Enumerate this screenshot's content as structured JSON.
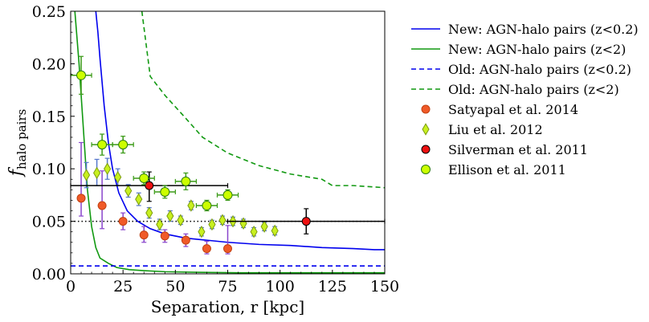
{
  "chart_data": {
    "type": "scatter",
    "xlabel": "Separation, r [kpc]",
    "ylabel_main": "f",
    "ylabel_sub": "halo pairs",
    "xlim": [
      0,
      150
    ],
    "ylim": [
      0,
      0.25
    ],
    "grid": false,
    "legend_position": "outside-right",
    "x_ticks": [
      0,
      25,
      50,
      75,
      100,
      125,
      150
    ],
    "x_tick_labels": [
      "0",
      "25",
      "50",
      "75",
      "100",
      "125",
      "150"
    ],
    "y_ticks": [
      0.0,
      0.05,
      0.1,
      0.15,
      0.2,
      0.25
    ],
    "y_tick_labels": [
      "0.00",
      "0.05",
      "0.10",
      "0.15",
      "0.20",
      "0.25"
    ],
    "reference_line": {
      "y": 0.05,
      "style": "dotted",
      "color": "#000000"
    },
    "lines": [
      {
        "name": "New: AGN-halo pairs (z<0.2)",
        "color": "#0000ee",
        "dash": "solid",
        "x": [
          12,
          13,
          14,
          16,
          18,
          20,
          23,
          27,
          32,
          38,
          45,
          55,
          65,
          75,
          90,
          105,
          120,
          135,
          145,
          150
        ],
        "y": [
          0.25,
          0.23,
          0.205,
          0.16,
          0.125,
          0.1,
          0.077,
          0.06,
          0.05,
          0.043,
          0.038,
          0.034,
          0.032,
          0.03,
          0.028,
          0.027,
          0.025,
          0.024,
          0.023,
          0.023
        ]
      },
      {
        "name": "New: AGN-halo pairs (z<2)",
        "color": "#119911",
        "dash": "solid",
        "x": [
          2,
          4,
          6,
          8,
          10,
          12,
          14,
          18,
          22,
          28,
          35,
          45,
          60,
          80,
          100,
          125,
          150
        ],
        "y": [
          0.25,
          0.2,
          0.14,
          0.08,
          0.045,
          0.025,
          0.015,
          0.01,
          0.006,
          0.004,
          0.003,
          0.002,
          0.0015,
          0.001,
          0.001,
          0.001,
          0.001
        ]
      },
      {
        "name": "Old: AGN-halo pairs (z<0.2)",
        "color": "#0000ee",
        "dash": "dashed",
        "x": [
          0,
          150
        ],
        "y": [
          0.0075,
          0.0075
        ]
      },
      {
        "name": "Old: AGN-halo pairs (z<2)",
        "color": "#119911",
        "dash": "dashed",
        "x": [
          34,
          38,
          45,
          55,
          63,
          75,
          90,
          105,
          120,
          125,
          135,
          150
        ],
        "y": [
          0.25,
          0.188,
          0.17,
          0.148,
          0.13,
          0.115,
          0.103,
          0.095,
          0.09,
          0.084,
          0.084,
          0.082
        ]
      }
    ],
    "point_series": [
      {
        "name": "Satyapal et al. 2014",
        "marker": "circle",
        "fill": "#f05a28",
        "stroke": "#c04010",
        "errcolor": "#8844cc",
        "size": 5,
        "points": [
          {
            "x": 5,
            "y": 0.072,
            "yerr_lo": 0.017,
            "yerr_hi": 0.053
          },
          {
            "x": 15,
            "y": 0.065,
            "yerr_lo": 0.022,
            "yerr_hi": 0.033
          },
          {
            "x": 25,
            "y": 0.05,
            "yerr_lo": 0.008,
            "yerr_hi": 0.008
          },
          {
            "x": 35,
            "y": 0.037,
            "yerr_lo": 0.007,
            "yerr_hi": 0.008
          },
          {
            "x": 45,
            "y": 0.036,
            "yerr_lo": 0.006,
            "yerr_hi": 0.006
          },
          {
            "x": 55,
            "y": 0.032,
            "yerr_lo": 0.006,
            "yerr_hi": 0.006
          },
          {
            "x": 65,
            "y": 0.024,
            "yerr_lo": 0.005,
            "yerr_hi": 0.007
          },
          {
            "x": 75,
            "y": 0.024,
            "yerr_lo": 0.005,
            "yerr_hi": 0.022
          }
        ]
      },
      {
        "name": "Liu et al. 2012",
        "marker": "diamond",
        "fill": "#c8f020",
        "stroke": "#7a9a10",
        "errcolor": "#5577cc",
        "size": 5,
        "points": [
          {
            "x": 7.5,
            "y": 0.094,
            "yerr_lo": 0.012,
            "yerr_hi": 0.012
          },
          {
            "x": 12.5,
            "y": 0.096,
            "yerr_lo": 0.012,
            "yerr_hi": 0.013
          },
          {
            "x": 17.5,
            "y": 0.1,
            "yerr_lo": 0.01,
            "yerr_hi": 0.01
          },
          {
            "x": 22.5,
            "y": 0.092,
            "yerr_lo": 0.008,
            "yerr_hi": 0.008
          },
          {
            "x": 27.5,
            "y": 0.079,
            "yerr_lo": 0.006,
            "yerr_hi": 0.006
          },
          {
            "x": 32.5,
            "y": 0.071,
            "yerr_lo": 0.006,
            "yerr_hi": 0.006
          },
          {
            "x": 37.5,
            "y": 0.058,
            "yerr_lo": 0.005,
            "yerr_hi": 0.005
          },
          {
            "x": 42.5,
            "y": 0.047,
            "yerr_lo": 0.005,
            "yerr_hi": 0.005
          },
          {
            "x": 47.5,
            "y": 0.055,
            "yerr_lo": 0.005,
            "yerr_hi": 0.005
          },
          {
            "x": 52.5,
            "y": 0.051,
            "yerr_lo": 0.004,
            "yerr_hi": 0.004
          },
          {
            "x": 57.5,
            "y": 0.065,
            "yerr_lo": 0.004,
            "yerr_hi": 0.004
          },
          {
            "x": 62.5,
            "y": 0.04,
            "yerr_lo": 0.004,
            "yerr_hi": 0.004
          },
          {
            "x": 67.5,
            "y": 0.047,
            "yerr_lo": 0.004,
            "yerr_hi": 0.004
          },
          {
            "x": 72.5,
            "y": 0.051,
            "yerr_lo": 0.004,
            "yerr_hi": 0.004
          },
          {
            "x": 77.5,
            "y": 0.05,
            "yerr_lo": 0.004,
            "yerr_hi": 0.004
          },
          {
            "x": 82.5,
            "y": 0.048,
            "yerr_lo": 0.004,
            "yerr_hi": 0.004
          },
          {
            "x": 87.5,
            "y": 0.04,
            "yerr_lo": 0.004,
            "yerr_hi": 0.004
          },
          {
            "x": 92.5,
            "y": 0.045,
            "yerr_lo": 0.004,
            "yerr_hi": 0.004
          },
          {
            "x": 97.5,
            "y": 0.041,
            "yerr_lo": 0.004,
            "yerr_hi": 0.004
          }
        ]
      },
      {
        "name": "Silverman et al. 2011",
        "marker": "circle",
        "fill": "#ee1111",
        "stroke": "#000000",
        "errcolor": "#000000",
        "size": 5,
        "points": [
          {
            "x": 37.5,
            "y": 0.084,
            "xerr": 37.5,
            "yerr_lo": 0.015,
            "yerr_hi": 0.013
          },
          {
            "x": 112.5,
            "y": 0.05,
            "xerr": 37.5,
            "yerr_lo": 0.012,
            "yerr_hi": 0.012
          }
        ]
      },
      {
        "name": "Ellison et al. 2011",
        "marker": "circle",
        "fill": "#ccff00",
        "stroke": "#2e7d0e",
        "errcolor": "#3a9a16",
        "size": 5.5,
        "points": [
          {
            "x": 5,
            "y": 0.189,
            "xerr": 5,
            "yerr_lo": 0.018,
            "yerr_hi": 0.018
          },
          {
            "x": 15,
            "y": 0.123,
            "xerr": 5,
            "yerr_lo": 0.01,
            "yerr_hi": 0.01
          },
          {
            "x": 25,
            "y": 0.123,
            "xerr": 5,
            "yerr_lo": 0.008,
            "yerr_hi": 0.008
          },
          {
            "x": 35,
            "y": 0.091,
            "xerr": 5,
            "yerr_lo": 0.006,
            "yerr_hi": 0.006
          },
          {
            "x": 45,
            "y": 0.078,
            "xerr": 5,
            "yerr_lo": 0.006,
            "yerr_hi": 0.006
          },
          {
            "x": 55,
            "y": 0.088,
            "xerr": 5,
            "yerr_lo": 0.008,
            "yerr_hi": 0.008
          },
          {
            "x": 65,
            "y": 0.065,
            "xerr": 5,
            "yerr_lo": 0.005,
            "yerr_hi": 0.005
          },
          {
            "x": 75,
            "y": 0.075,
            "xerr": 5,
            "yerr_lo": 0.005,
            "yerr_hi": 0.005
          }
        ]
      }
    ]
  }
}
